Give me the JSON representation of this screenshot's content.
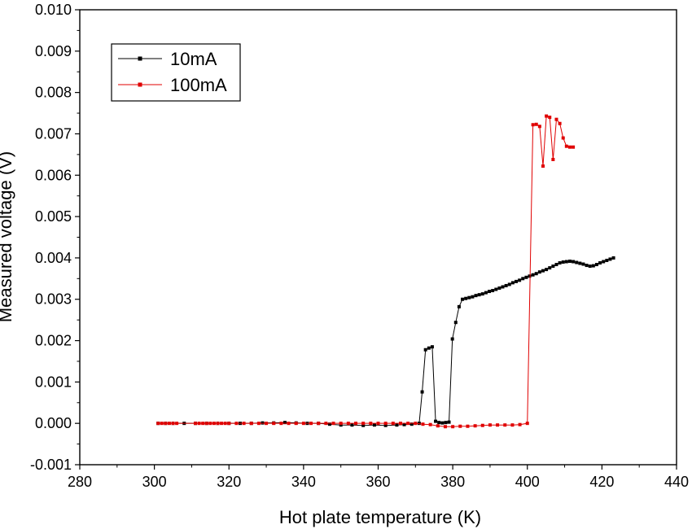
{
  "chart_data": {
    "type": "line",
    "title": "",
    "xlabel": "Hot plate temperature (K)",
    "ylabel": "Measured voltage (V)",
    "xlim": [
      280,
      440
    ],
    "ylim": [
      -0.001,
      0.01
    ],
    "x_ticks": [
      280,
      300,
      320,
      340,
      360,
      380,
      400,
      420,
      440
    ],
    "x_tick_labels": [
      "280",
      "300",
      "320",
      "340",
      "360",
      "380",
      "400",
      "420",
      "440"
    ],
    "y_ticks": [
      -0.001,
      0.0,
      0.001,
      0.002,
      0.003,
      0.004,
      0.005,
      0.006,
      0.007,
      0.008,
      0.009,
      0.01
    ],
    "y_tick_labels": [
      "-0.001",
      "0.000",
      "0.001",
      "0.002",
      "0.003",
      "0.004",
      "0.005",
      "0.006",
      "0.007",
      "0.008",
      "0.009",
      "0.010"
    ],
    "grid": false,
    "legend_position": "top-left",
    "series": [
      {
        "name": "10mA",
        "color": "#000000",
        "x": [
          301,
          303,
          305,
          308,
          311,
          314,
          317,
          320,
          323,
          326,
          329,
          332,
          335,
          338,
          341,
          344,
          347,
          350,
          353,
          356,
          359,
          362,
          365,
          367,
          369,
          371,
          371.8,
          372.7,
          373.6,
          374.5,
          375.4,
          376.3,
          377.2,
          378.1,
          379,
          379.9,
          380.8,
          381.7,
          382.6,
          383.5,
          384.4,
          385.3,
          386.2,
          387.1,
          388,
          388.9,
          389.8,
          390.7,
          391.6,
          392.5,
          393.4,
          394.3,
          395.2,
          396.1,
          397,
          397.9,
          398.8,
          399.7,
          400.6,
          401.5,
          402.4,
          403.3,
          404.2,
          405.1,
          406,
          406.9,
          407.8,
          408.7,
          409.6,
          410.5,
          411.4,
          412.3,
          413.2,
          414.1,
          415,
          415.9,
          416.8,
          417.7,
          418.6,
          419.5,
          420.4,
          421.3,
          422.2,
          423.1
        ],
        "values": [
          0.0,
          0.0,
          0.0,
          0.0,
          0.0,
          0.0,
          0.0,
          0.0,
          0.0,
          0.0,
          1e-05,
          1e-05,
          2e-05,
          1e-05,
          0.0,
          0.0,
          -2e-05,
          -4e-05,
          -4e-05,
          -5e-05,
          -4e-05,
          -5e-05,
          -4e-05,
          -3e-05,
          -2e-05,
          0.0,
          0.00076,
          0.00178,
          0.00182,
          0.00185,
          5e-05,
          2e-05,
          1e-05,
          2e-05,
          3e-05,
          0.00204,
          0.00244,
          0.00282,
          0.003,
          0.00302,
          0.00304,
          0.00306,
          0.00309,
          0.00311,
          0.00313,
          0.00316,
          0.00319,
          0.00321,
          0.00324,
          0.00327,
          0.0033,
          0.00333,
          0.00336,
          0.0034,
          0.00343,
          0.00346,
          0.0035,
          0.00353,
          0.00356,
          0.00359,
          0.00362,
          0.00366,
          0.00369,
          0.00372,
          0.00376,
          0.0038,
          0.00384,
          0.00388,
          0.0039,
          0.00391,
          0.00392,
          0.00391,
          0.00389,
          0.00387,
          0.00385,
          0.00382,
          0.0038,
          0.00381,
          0.00384,
          0.00388,
          0.00391,
          0.00394,
          0.00397,
          0.004
        ]
      },
      {
        "name": "100mA",
        "color": "#e00000",
        "x": [
          301,
          302,
          303,
          304,
          305,
          306,
          311,
          312,
          313,
          314,
          315,
          316,
          317,
          318,
          319,
          320,
          322,
          324,
          326,
          328,
          330,
          332,
          334,
          336,
          338,
          340,
          342,
          344,
          346,
          348,
          350,
          352,
          354,
          356,
          358,
          360,
          362,
          364,
          366,
          368,
          370,
          372,
          374,
          376,
          378,
          380,
          382,
          384,
          386,
          388,
          390,
          392,
          394,
          396,
          398,
          400,
          401.5,
          402.4,
          403.3,
          404.2,
          405.1,
          406,
          406.9,
          407.8,
          408.7,
          409.6,
          410.5,
          411.4,
          412.3
        ],
        "values": [
          0.0,
          0.0,
          0.0,
          0.0,
          0.0,
          0.0,
          0.0,
          0.0,
          0.0,
          0.0,
          0.0,
          0.0,
          0.0,
          0.0,
          0.0,
          0.0,
          0.0,
          0.0,
          0.0,
          0.0,
          0.0,
          0.0,
          0.0,
          0.0,
          0.0,
          0.0,
          0.0,
          0.0,
          0.0,
          0.0,
          0.0,
          0.0,
          0.0,
          0.0,
          0.0,
          0.0,
          0.0,
          0.0,
          0.0,
          0.0,
          0.0,
          -2e-05,
          -3e-05,
          -6e-05,
          -8e-05,
          -8e-05,
          -7e-05,
          -7e-05,
          -6e-05,
          -5e-05,
          -4e-05,
          -4e-05,
          -4e-05,
          -4e-05,
          -3e-05,
          0.0,
          0.00722,
          0.00723,
          0.00718,
          0.00622,
          0.00743,
          0.0074,
          0.00638,
          0.00735,
          0.00725,
          0.0069,
          0.0067,
          0.00668,
          0.00668
        ]
      }
    ]
  }
}
